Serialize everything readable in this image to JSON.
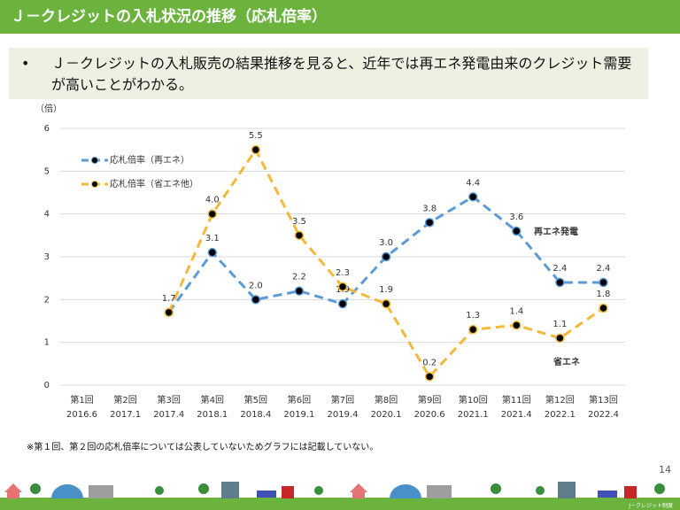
{
  "header": {
    "title": "Ｊ－クレジットの入札状況の推移（応札倍率）"
  },
  "bullet": {
    "marker": "•",
    "text": "Ｊ－クレジットの入札販売の結果推移を見ると、近年では再エネ発電由来のクレジット需要が高いことがわかる。"
  },
  "chart_data": {
    "type": "line",
    "y_unit": "（倍）",
    "categories": [
      [
        "第1回",
        "2016.6"
      ],
      [
        "第2回",
        "2017.1"
      ],
      [
        "第3回",
        "2017.4"
      ],
      [
        "第4回",
        "2018.1"
      ],
      [
        "第5回",
        "2018.4"
      ],
      [
        "第6回",
        "2019.1"
      ],
      [
        "第7回",
        "2019.4"
      ],
      [
        "第8回",
        "2020.1"
      ],
      [
        "第9回",
        "2020.6"
      ],
      [
        "第10回",
        "2021.1"
      ],
      [
        "第11回",
        "2021.4"
      ],
      [
        "第12回",
        "2022.1"
      ],
      [
        "第13回",
        "2022.4"
      ]
    ],
    "series": [
      {
        "name": "応札倍率（再エネ）",
        "color": "#5b9bd5",
        "values": [
          null,
          null,
          1.7,
          3.1,
          2.0,
          2.2,
          1.9,
          3.0,
          3.8,
          4.4,
          3.6,
          2.4,
          2.4
        ],
        "value_labels": [
          null,
          null,
          null,
          "3.1",
          "2.0",
          "2.2",
          "1.9",
          "3.0",
          "3.8",
          "4.4",
          "3.6",
          "2.4",
          "2.4"
        ]
      },
      {
        "name": "応札倍率（省エネ他）",
        "color": "#f2b93b",
        "values": [
          null,
          null,
          1.7,
          4.0,
          5.5,
          3.5,
          2.3,
          1.9,
          0.2,
          1.3,
          1.4,
          1.1,
          1.8
        ],
        "value_labels": [
          null,
          null,
          "1.7",
          "4.0",
          "5.5",
          "3.5",
          "2.3",
          "1.9",
          "0.2",
          "1.3",
          "1.4",
          "1.1",
          "1.8"
        ]
      }
    ],
    "ylim": [
      0,
      6
    ],
    "yticks": [
      0,
      1,
      2,
      3,
      4,
      5,
      6
    ],
    "grid": true,
    "legend": "top-left",
    "annotations": [
      "再エネ発電",
      "省エネ"
    ]
  },
  "footnote": "※第１回、第２回の応札倍率については公表していないためグラフには記載していない。",
  "page_number": "14",
  "footer_brand": "J－クレジット制度"
}
